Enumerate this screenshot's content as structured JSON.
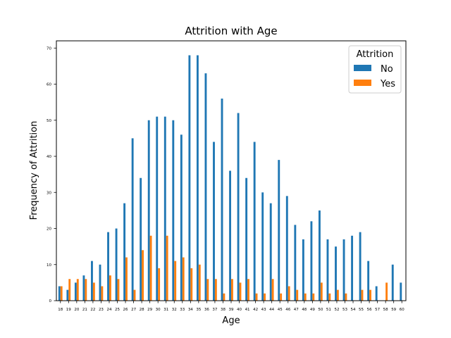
{
  "chart_data": {
    "type": "bar",
    "title": "Attrition with Age",
    "xlabel": "Age",
    "ylabel": "Frequency of Attrition",
    "ylim": [
      0,
      72
    ],
    "yticks": [
      0,
      10,
      20,
      30,
      40,
      50,
      60,
      70
    ],
    "grid": false,
    "legend": {
      "title": "Attrition",
      "placement": "top-right"
    },
    "categories": [
      "18",
      "19",
      "20",
      "21",
      "22",
      "23",
      "24",
      "25",
      "26",
      "27",
      "28",
      "29",
      "30",
      "31",
      "32",
      "33",
      "34",
      "35",
      "36",
      "37",
      "38",
      "39",
      "40",
      "41",
      "42",
      "43",
      "44",
      "45",
      "46",
      "47",
      "48",
      "49",
      "50",
      "51",
      "52",
      "53",
      "54",
      "55",
      "56",
      "57",
      "58",
      "59",
      "60"
    ],
    "series": [
      {
        "name": "No",
        "color": "#1f77b4",
        "values": [
          4,
          3,
          5,
          7,
          11,
          10,
          19,
          20,
          27,
          45,
          34,
          50,
          51,
          51,
          50,
          46,
          68,
          68,
          63,
          44,
          56,
          36,
          52,
          34,
          44,
          30,
          27,
          39,
          29,
          21,
          17,
          22,
          25,
          17,
          15,
          17,
          18,
          19,
          11,
          4,
          0,
          10,
          5
        ]
      },
      {
        "name": "Yes",
        "color": "#ff7f0e",
        "values": [
          4,
          6,
          6,
          6,
          5,
          4,
          7,
          6,
          12,
          3,
          14,
          18,
          9,
          18,
          11,
          12,
          9,
          10,
          6,
          6,
          2,
          6,
          5,
          6,
          2,
          2,
          6,
          2,
          4,
          3,
          2,
          2,
          5,
          2,
          3,
          2,
          0,
          3,
          3,
          0,
          5,
          0,
          0
        ]
      }
    ]
  }
}
